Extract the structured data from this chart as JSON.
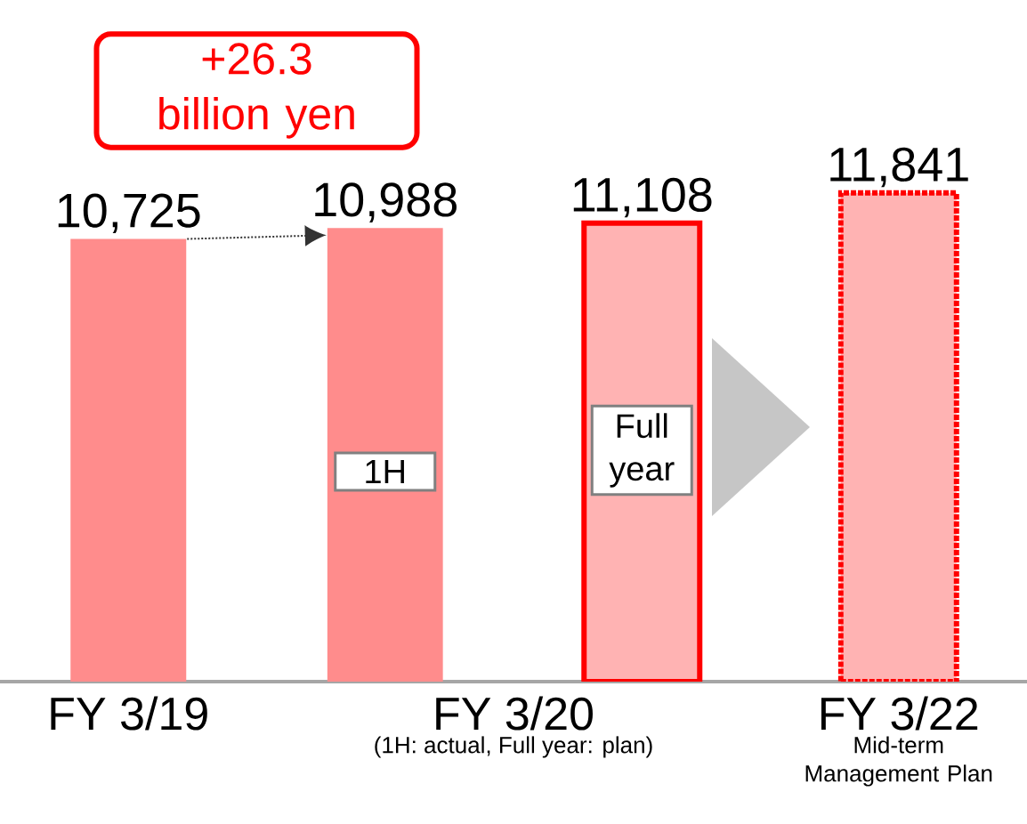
{
  "chart_data": {
    "type": "bar",
    "categories": [
      "FY 3/19",
      "1H",
      "Full year",
      "FY 3/22"
    ],
    "values": [
      10725,
      10988,
      11108,
      11841
    ],
    "value_labels": [
      "10,725",
      "10,988",
      "11,108",
      "11,841"
    ],
    "colors": [
      "#ff8c8c",
      "#ff8c8c",
      "#ffb3b3",
      "#ffb3b3"
    ],
    "annotations": [
      "+26.3 billion yen",
      "FY 3/20",
      "(1H: actual, Full year: plan)",
      "Mid-term Management Plan"
    ]
  }
}
